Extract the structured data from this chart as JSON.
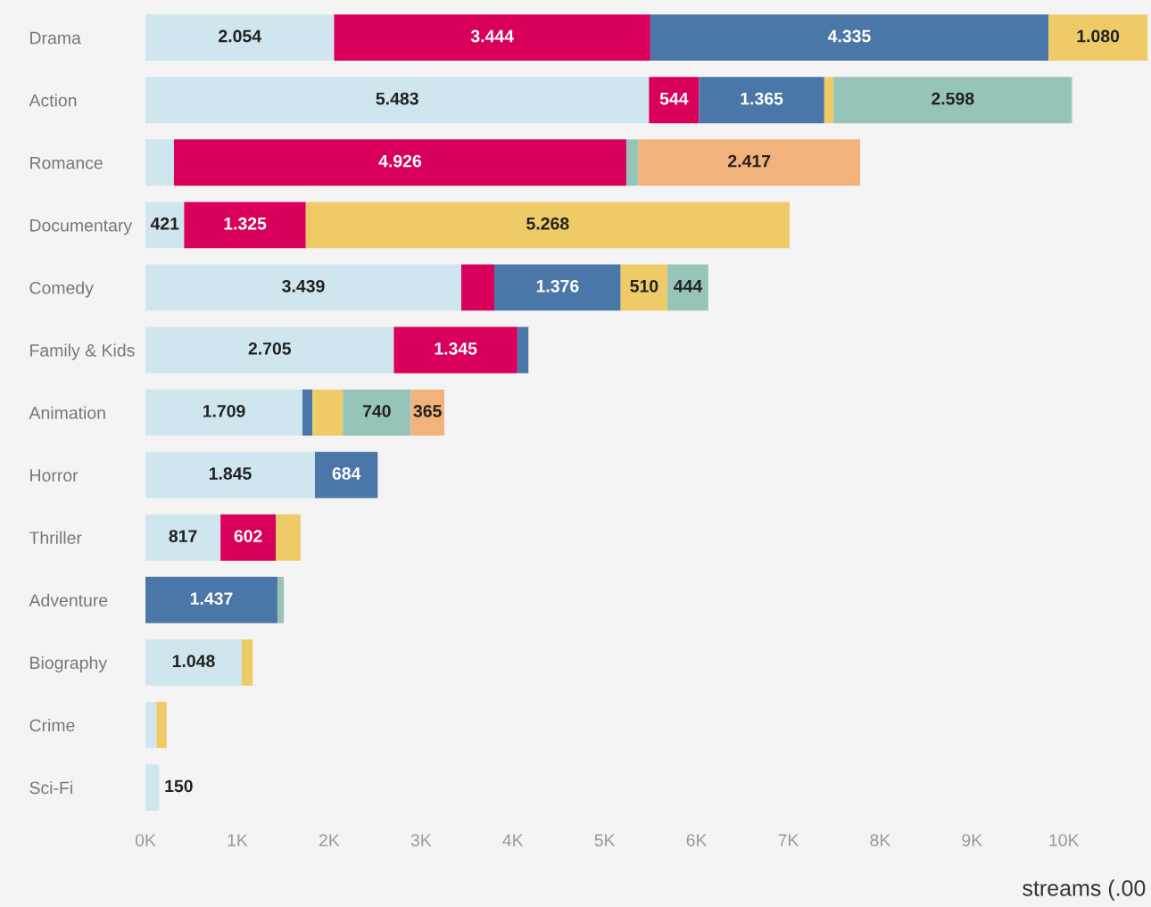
{
  "chart_data": {
    "type": "bar",
    "orientation": "horizontal",
    "stacked": true,
    "xlabel": "streams (.00",
    "categories": [
      "Drama",
      "Action",
      "Romance",
      "Documentary",
      "Comedy",
      "Family & Kids",
      "Animation",
      "Horror",
      "Thriller",
      "Adventure",
      "Biography",
      "Crime",
      "Sci-Fi"
    ],
    "xlim": [
      0,
      10950
    ],
    "xticks": [
      {
        "value": 0,
        "label": "0K"
      },
      {
        "value": 1000,
        "label": "1K"
      },
      {
        "value": 2000,
        "label": "2K"
      },
      {
        "value": 3000,
        "label": "3K"
      },
      {
        "value": 4000,
        "label": "4K"
      },
      {
        "value": 5000,
        "label": "5K"
      },
      {
        "value": 6000,
        "label": "6K"
      },
      {
        "value": 7000,
        "label": "7K"
      },
      {
        "value": 8000,
        "label": "8K"
      },
      {
        "value": 9000,
        "label": "9K"
      },
      {
        "value": 10000,
        "label": "10K"
      }
    ],
    "grid": false,
    "legend": false,
    "series": [
      {
        "color": "#cfe6ee",
        "values": [
          2054,
          5483,
          310,
          421,
          3439,
          2705,
          1709,
          1845,
          817,
          null,
          1048,
          120,
          150
        ],
        "value_labels": [
          "2.054",
          "5.483",
          null,
          "421",
          "3.439",
          "2.705",
          "1.709",
          "1.845",
          "817",
          null,
          "1.048",
          null,
          "150"
        ]
      },
      {
        "color": "#d8005a",
        "values": [
          3444,
          544,
          4926,
          1325,
          360,
          1345,
          null,
          null,
          602,
          null,
          null,
          null,
          null
        ],
        "value_labels": [
          "3.444",
          "544",
          "4.926",
          "1.325",
          null,
          "1.345",
          null,
          null,
          "602",
          null,
          null,
          null,
          null
        ]
      },
      {
        "color": "#4a76a8",
        "values": [
          4335,
          1365,
          null,
          null,
          1376,
          120,
          110,
          684,
          null,
          1437,
          null,
          null,
          null
        ],
        "value_labels": [
          "4.335",
          "1.365",
          null,
          null,
          "1.376",
          null,
          null,
          "684",
          null,
          "1.437",
          null,
          null,
          null
        ]
      },
      {
        "color": "#efcb68",
        "values": [
          1080,
          100,
          null,
          5268,
          510,
          null,
          330,
          null,
          270,
          null,
          120,
          110,
          null
        ],
        "value_labels": [
          "1.080",
          null,
          null,
          "5.268",
          "510",
          null,
          null,
          null,
          null,
          null,
          null,
          null,
          null
        ]
      },
      {
        "color": "#97c4b8",
        "values": [
          null,
          2598,
          130,
          null,
          444,
          null,
          740,
          null,
          null,
          70,
          null,
          null,
          null
        ],
        "value_labels": [
          null,
          "2.598",
          null,
          null,
          "444",
          null,
          "740",
          null,
          null,
          null,
          null,
          null,
          null
        ]
      },
      {
        "color": "#f2b27b",
        "values": [
          null,
          null,
          2417,
          null,
          null,
          null,
          365,
          null,
          null,
          null,
          null,
          null,
          null
        ],
        "value_labels": [
          null,
          null,
          "2.417",
          null,
          null,
          null,
          "365",
          null,
          null,
          null,
          null,
          null,
          null
        ]
      }
    ]
  }
}
